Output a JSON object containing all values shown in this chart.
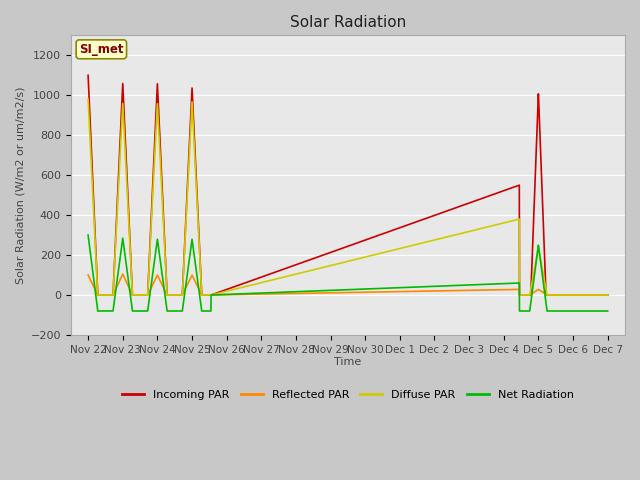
{
  "title": "Solar Radiation",
  "ylabel": "Solar Radiation (W/m2 or um/m2/s)",
  "xlabel": "Time",
  "ylim": [
    -200,
    1300
  ],
  "yticks": [
    -200,
    0,
    200,
    400,
    600,
    800,
    1000,
    1200
  ],
  "fig_bg": "#c8c8c8",
  "plot_bg": "#e8e8e8",
  "tag_text": "SI_met",
  "tag_bg": "#ffffcc",
  "tag_border": "#888800",
  "tag_text_color": "#880000",
  "x_labels": [
    "Nov 22",
    "Nov 23",
    "Nov 24",
    "Nov 25",
    "Nov 26",
    "Nov 27",
    "Nov 28",
    "Nov 29",
    "Nov 30",
    "Dec 1",
    "Dec 2",
    "Dec 3",
    "Dec 4",
    "Dec 5",
    "Dec 6",
    "Dec 7"
  ],
  "colors": {
    "incoming": "#cc0000",
    "reflected": "#ff8800",
    "diffuse": "#cccc00",
    "net": "#00bb00"
  },
  "legend": [
    "Incoming PAR",
    "Reflected PAR",
    "Diffuse PAR",
    "Net Radiation"
  ]
}
